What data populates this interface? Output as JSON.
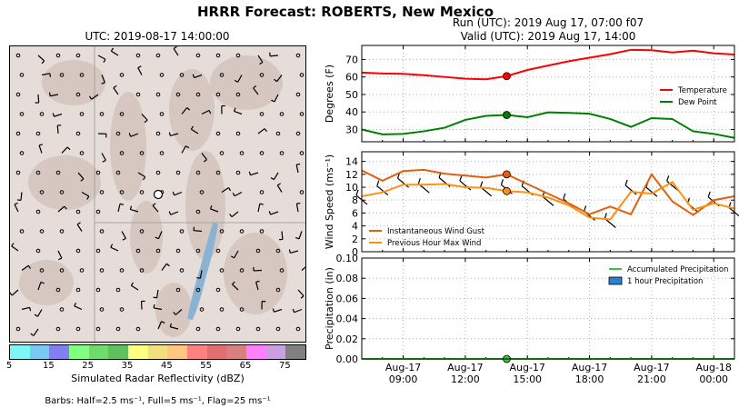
{
  "header": {
    "title": "HRRR Forecast: ROBERTS, New Mexico",
    "map_title": "UTC: 2019-08-17 14:00:00",
    "run_line": "Run (UTC): 2019 Aug 17, 07:00 f07",
    "valid_line": "Valid (UTC): 2019 Aug 17, 14:00"
  },
  "colorbar": {
    "label": "Simulated Radar Reflectivity (dBZ)",
    "ticks": [
      "5",
      "15",
      "25",
      "35",
      "45",
      "55",
      "65",
      "75"
    ],
    "colors": [
      "#7ff6f6",
      "#79c9f4",
      "#8080f0",
      "#80ff80",
      "#6cdc6c",
      "#60c060",
      "#ffff80",
      "#f0e080",
      "#ffc880",
      "#ff8080",
      "#e07070",
      "#d88080",
      "#ff80ff",
      "#c8a0e0",
      "#808080"
    ]
  },
  "footnote": "Barbs: Half=2.5 ms⁻¹, Full=5 ms⁻¹, Flag=25 ms⁻¹",
  "chart_data": [
    {
      "type": "line",
      "ylabel": "Degrees (F)",
      "ylim": [
        23,
        78
      ],
      "yticks": [
        30,
        40,
        50,
        60,
        70
      ],
      "x": [
        7,
        8,
        9,
        10,
        11,
        12,
        13,
        14,
        15,
        16,
        17,
        18,
        19,
        20,
        21,
        22,
        23,
        24,
        25
      ],
      "series": [
        {
          "name": "Temperature",
          "color": "#ff0000",
          "values": [
            62.5,
            62,
            61.8,
            61,
            60,
            59,
            58.7,
            60.5,
            64,
            66.5,
            69,
            71,
            73,
            75.5,
            75.3,
            74,
            75,
            73.5,
            72.8
          ]
        },
        {
          "name": "Dew Point",
          "color": "#008000",
          "values": [
            30,
            27.2,
            27.5,
            29,
            31,
            35.5,
            37.8,
            38.3,
            37,
            39.8,
            39.5,
            39,
            36,
            31.5,
            36.5,
            36,
            29,
            27.5,
            25.2
          ]
        }
      ],
      "marker_x": 14,
      "legend": "right",
      "grid": true
    },
    {
      "type": "line",
      "ylabel": "Wind Speed (ms⁻¹)",
      "ylim": [
        0,
        15.5
      ],
      "yticks": [
        0,
        2,
        4,
        6,
        8,
        10,
        12,
        14
      ],
      "x": [
        7,
        8,
        9,
        10,
        11,
        12,
        13,
        14,
        15,
        16,
        17,
        18,
        19,
        20,
        21,
        22,
        23,
        24,
        25
      ],
      "series": [
        {
          "name": "Instantaneous Wind Gust",
          "color": "#e06010",
          "values": [
            12.6,
            11,
            12.5,
            12.7,
            12.1,
            11.8,
            11.5,
            12,
            10.5,
            9,
            7.5,
            5.8,
            7,
            5.8,
            12,
            7.8,
            5.7,
            8,
            8.6
          ]
        },
        {
          "name": "Previous Hour Max Wind",
          "color": "#ff9010",
          "values": [
            8.6,
            9.2,
            10.4,
            10.4,
            10.5,
            10,
            9.9,
            9.4,
            9.2,
            8.4,
            7.2,
            5.3,
            5,
            9.3,
            9,
            10.8,
            6.5,
            7.5,
            6.7
          ]
        }
      ],
      "marker_x": 14,
      "legend": "bottom-left",
      "grid": true
    },
    {
      "type": "bar",
      "ylabel": "Precipitation (in)",
      "ylim": [
        0,
        0.1
      ],
      "yticks": [
        "0.00",
        "0.02",
        "0.04",
        "0.06",
        "0.08",
        "0.10"
      ],
      "x": [
        7,
        8,
        9,
        10,
        11,
        12,
        13,
        14,
        15,
        16,
        17,
        18,
        19,
        20,
        21,
        22,
        23,
        24,
        25
      ],
      "series": [
        {
          "name": "Accumulated Precipitation",
          "color": "#33cc33",
          "values": [
            0,
            0,
            0,
            0,
            0,
            0,
            0,
            0,
            0,
            0,
            0,
            0,
            0,
            0,
            0,
            0,
            0,
            0,
            0
          ]
        },
        {
          "name": "1 hour Precipitation",
          "color": "#2a7fd6",
          "values": [
            0,
            0,
            0,
            0,
            0,
            0,
            0,
            0,
            0,
            0,
            0,
            0,
            0,
            0,
            0,
            0,
            0,
            0,
            0
          ]
        }
      ],
      "marker_x": 14,
      "legend": "top-right",
      "grid": true
    }
  ],
  "xaxis": {
    "ticks": [
      {
        "x": 9,
        "line1": "Aug-17",
        "line2": "09:00"
      },
      {
        "x": 12,
        "line1": "Aug-17",
        "line2": "12:00"
      },
      {
        "x": 15,
        "line1": "Aug-17",
        "line2": "15:00"
      },
      {
        "x": 18,
        "line1": "Aug-17",
        "line2": "18:00"
      },
      {
        "x": 21,
        "line1": "Aug-17",
        "line2": "21:00"
      },
      {
        "x": 24,
        "line1": "Aug-18",
        "line2": "00:00"
      }
    ],
    "xlim": [
      7,
      25
    ]
  }
}
